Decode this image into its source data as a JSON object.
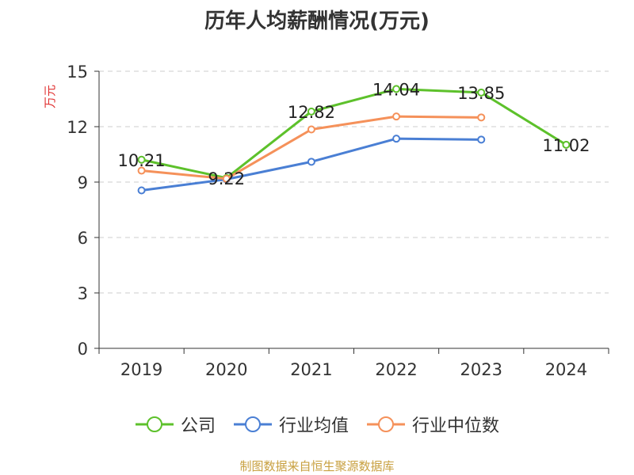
{
  "chart_data": {
    "type": "line",
    "title": "历年人均薪酬情况(万元)",
    "ylabel": "万元",
    "categories": [
      "2019",
      "2020",
      "2021",
      "2022",
      "2023",
      "2024"
    ],
    "ylim": [
      0,
      15
    ],
    "yticks": [
      0,
      3,
      6,
      9,
      12,
      15
    ],
    "grid": true,
    "legend_position": "bottom",
    "series": [
      {
        "name": "公司",
        "color": "#5dc12b",
        "values": [
          10.21,
          9.22,
          12.82,
          14.04,
          13.85,
          11.02
        ],
        "labels": [
          "10.21",
          "9.22",
          "12.82",
          "14.04",
          "13.85",
          "11.02"
        ]
      },
      {
        "name": "行业均值",
        "color": "#4a7fd4",
        "values": [
          8.55,
          9.15,
          10.1,
          11.35,
          11.3,
          null
        ],
        "labels": []
      },
      {
        "name": "行业中位数",
        "color": "#f5915a",
        "values": [
          9.62,
          9.18,
          11.85,
          12.55,
          12.5,
          null
        ],
        "labels": []
      }
    ]
  },
  "source": "制图数据来自恒生聚源数据库"
}
